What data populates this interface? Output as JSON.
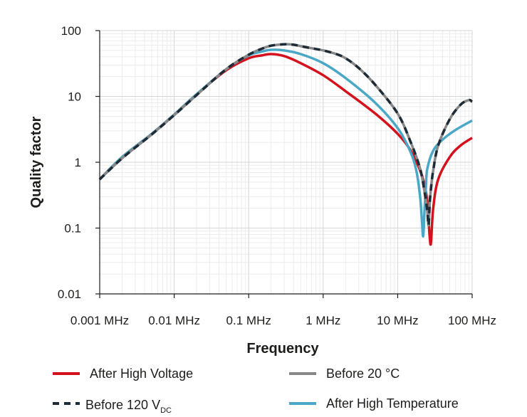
{
  "chart_data": {
    "type": "line",
    "xlabel": "Frequency",
    "ylabel": "Quality factor",
    "x_scale": "log",
    "y_scale": "log",
    "xlim": [
      0.001,
      100
    ],
    "ylim": [
      0.01,
      100
    ],
    "x_ticks": [
      {
        "value": 0.001,
        "label": "0.001 MHz"
      },
      {
        "value": 0.01,
        "label": "0.01 MHz"
      },
      {
        "value": 0.1,
        "label": "0.1 MHz"
      },
      {
        "value": 1,
        "label": "1 MHz"
      },
      {
        "value": 10,
        "label": "10 MHz"
      },
      {
        "value": 100,
        "label": "100 MHz"
      }
    ],
    "y_ticks": [
      {
        "value": 0.01,
        "label": "0.01"
      },
      {
        "value": 0.1,
        "label": "0.1"
      },
      {
        "value": 1,
        "label": "1"
      },
      {
        "value": 10,
        "label": "10"
      },
      {
        "value": 100,
        "label": "100"
      }
    ],
    "grid": true,
    "legend_position": "bottom",
    "series": [
      {
        "name": "After High Voltage",
        "color": "#d3121e",
        "style": "solid",
        "x": [
          0.001,
          0.002,
          0.005,
          0.01,
          0.02,
          0.05,
          0.1,
          0.15,
          0.2,
          0.3,
          0.5,
          1,
          2,
          5,
          10,
          15,
          20,
          23,
          25,
          26,
          27,
          28,
          30,
          35,
          50,
          70,
          100
        ],
        "y": [
          0.55,
          1.2,
          2.7,
          5.3,
          10.8,
          25,
          38,
          42,
          44,
          41,
          32,
          21,
          12,
          5.5,
          2.7,
          1.5,
          0.75,
          0.45,
          0.25,
          0.13,
          0.07,
          0.06,
          0.2,
          0.55,
          1.2,
          1.8,
          2.35
        ]
      },
      {
        "name": "Before 20 °C",
        "color": "#878787",
        "style": "solid",
        "x": [
          0.001,
          0.002,
          0.005,
          0.01,
          0.02,
          0.05,
          0.1,
          0.15,
          0.2,
          0.3,
          0.4,
          0.5,
          0.7,
          1,
          1.5,
          2,
          3,
          5,
          10,
          15,
          20,
          23,
          25,
          26,
          27,
          28,
          30,
          35,
          50,
          70,
          90,
          100
        ],
        "y": [
          0.55,
          1.15,
          2.65,
          5.2,
          10.5,
          26,
          43,
          53,
          59,
          62,
          61,
          58,
          54,
          50,
          44,
          38,
          27,
          15,
          5.5,
          2,
          0.8,
          0.35,
          0.18,
          0.11,
          0.25,
          0.4,
          0.75,
          1.8,
          4.5,
          7.5,
          8.8,
          8.3
        ]
      },
      {
        "name": "Before 120 VDC",
        "label_main": "Before 120 V",
        "label_sub": "DC",
        "color": "#1d2b36",
        "style": "dashed",
        "x": [
          0.001,
          0.002,
          0.005,
          0.01,
          0.02,
          0.05,
          0.1,
          0.15,
          0.2,
          0.3,
          0.4,
          0.5,
          0.7,
          1,
          1.5,
          2,
          3,
          5,
          10,
          15,
          20,
          23,
          25,
          26,
          27,
          28,
          30,
          35,
          50,
          70,
          90,
          100
        ],
        "y": [
          0.55,
          1.15,
          2.65,
          5.2,
          10.5,
          26,
          43,
          53,
          59,
          62,
          61,
          58,
          54,
          50,
          44,
          38,
          27,
          15,
          5.5,
          2,
          0.8,
          0.35,
          0.18,
          0.11,
          0.25,
          0.4,
          0.75,
          1.8,
          4.5,
          7.5,
          8.8,
          8.3
        ]
      },
      {
        "name": "After High Temperature",
        "color": "#4aa8c6",
        "style": "solid",
        "x": [
          0.001,
          0.002,
          0.005,
          0.01,
          0.02,
          0.05,
          0.1,
          0.15,
          0.2,
          0.3,
          0.5,
          1,
          2,
          5,
          10,
          15,
          18,
          20,
          21,
          22,
          23,
          24,
          25,
          30,
          40,
          60,
          100
        ],
        "y": [
          0.55,
          1.2,
          2.7,
          5.3,
          10.8,
          26,
          42,
          48,
          51,
          50,
          44,
          32,
          19,
          8,
          3.3,
          1.4,
          0.7,
          0.3,
          0.15,
          0.075,
          0.2,
          0.45,
          0.8,
          1.5,
          2.2,
          3.1,
          4.3
        ]
      }
    ],
    "legend_order": [
      0,
      1,
      2,
      3
    ]
  }
}
